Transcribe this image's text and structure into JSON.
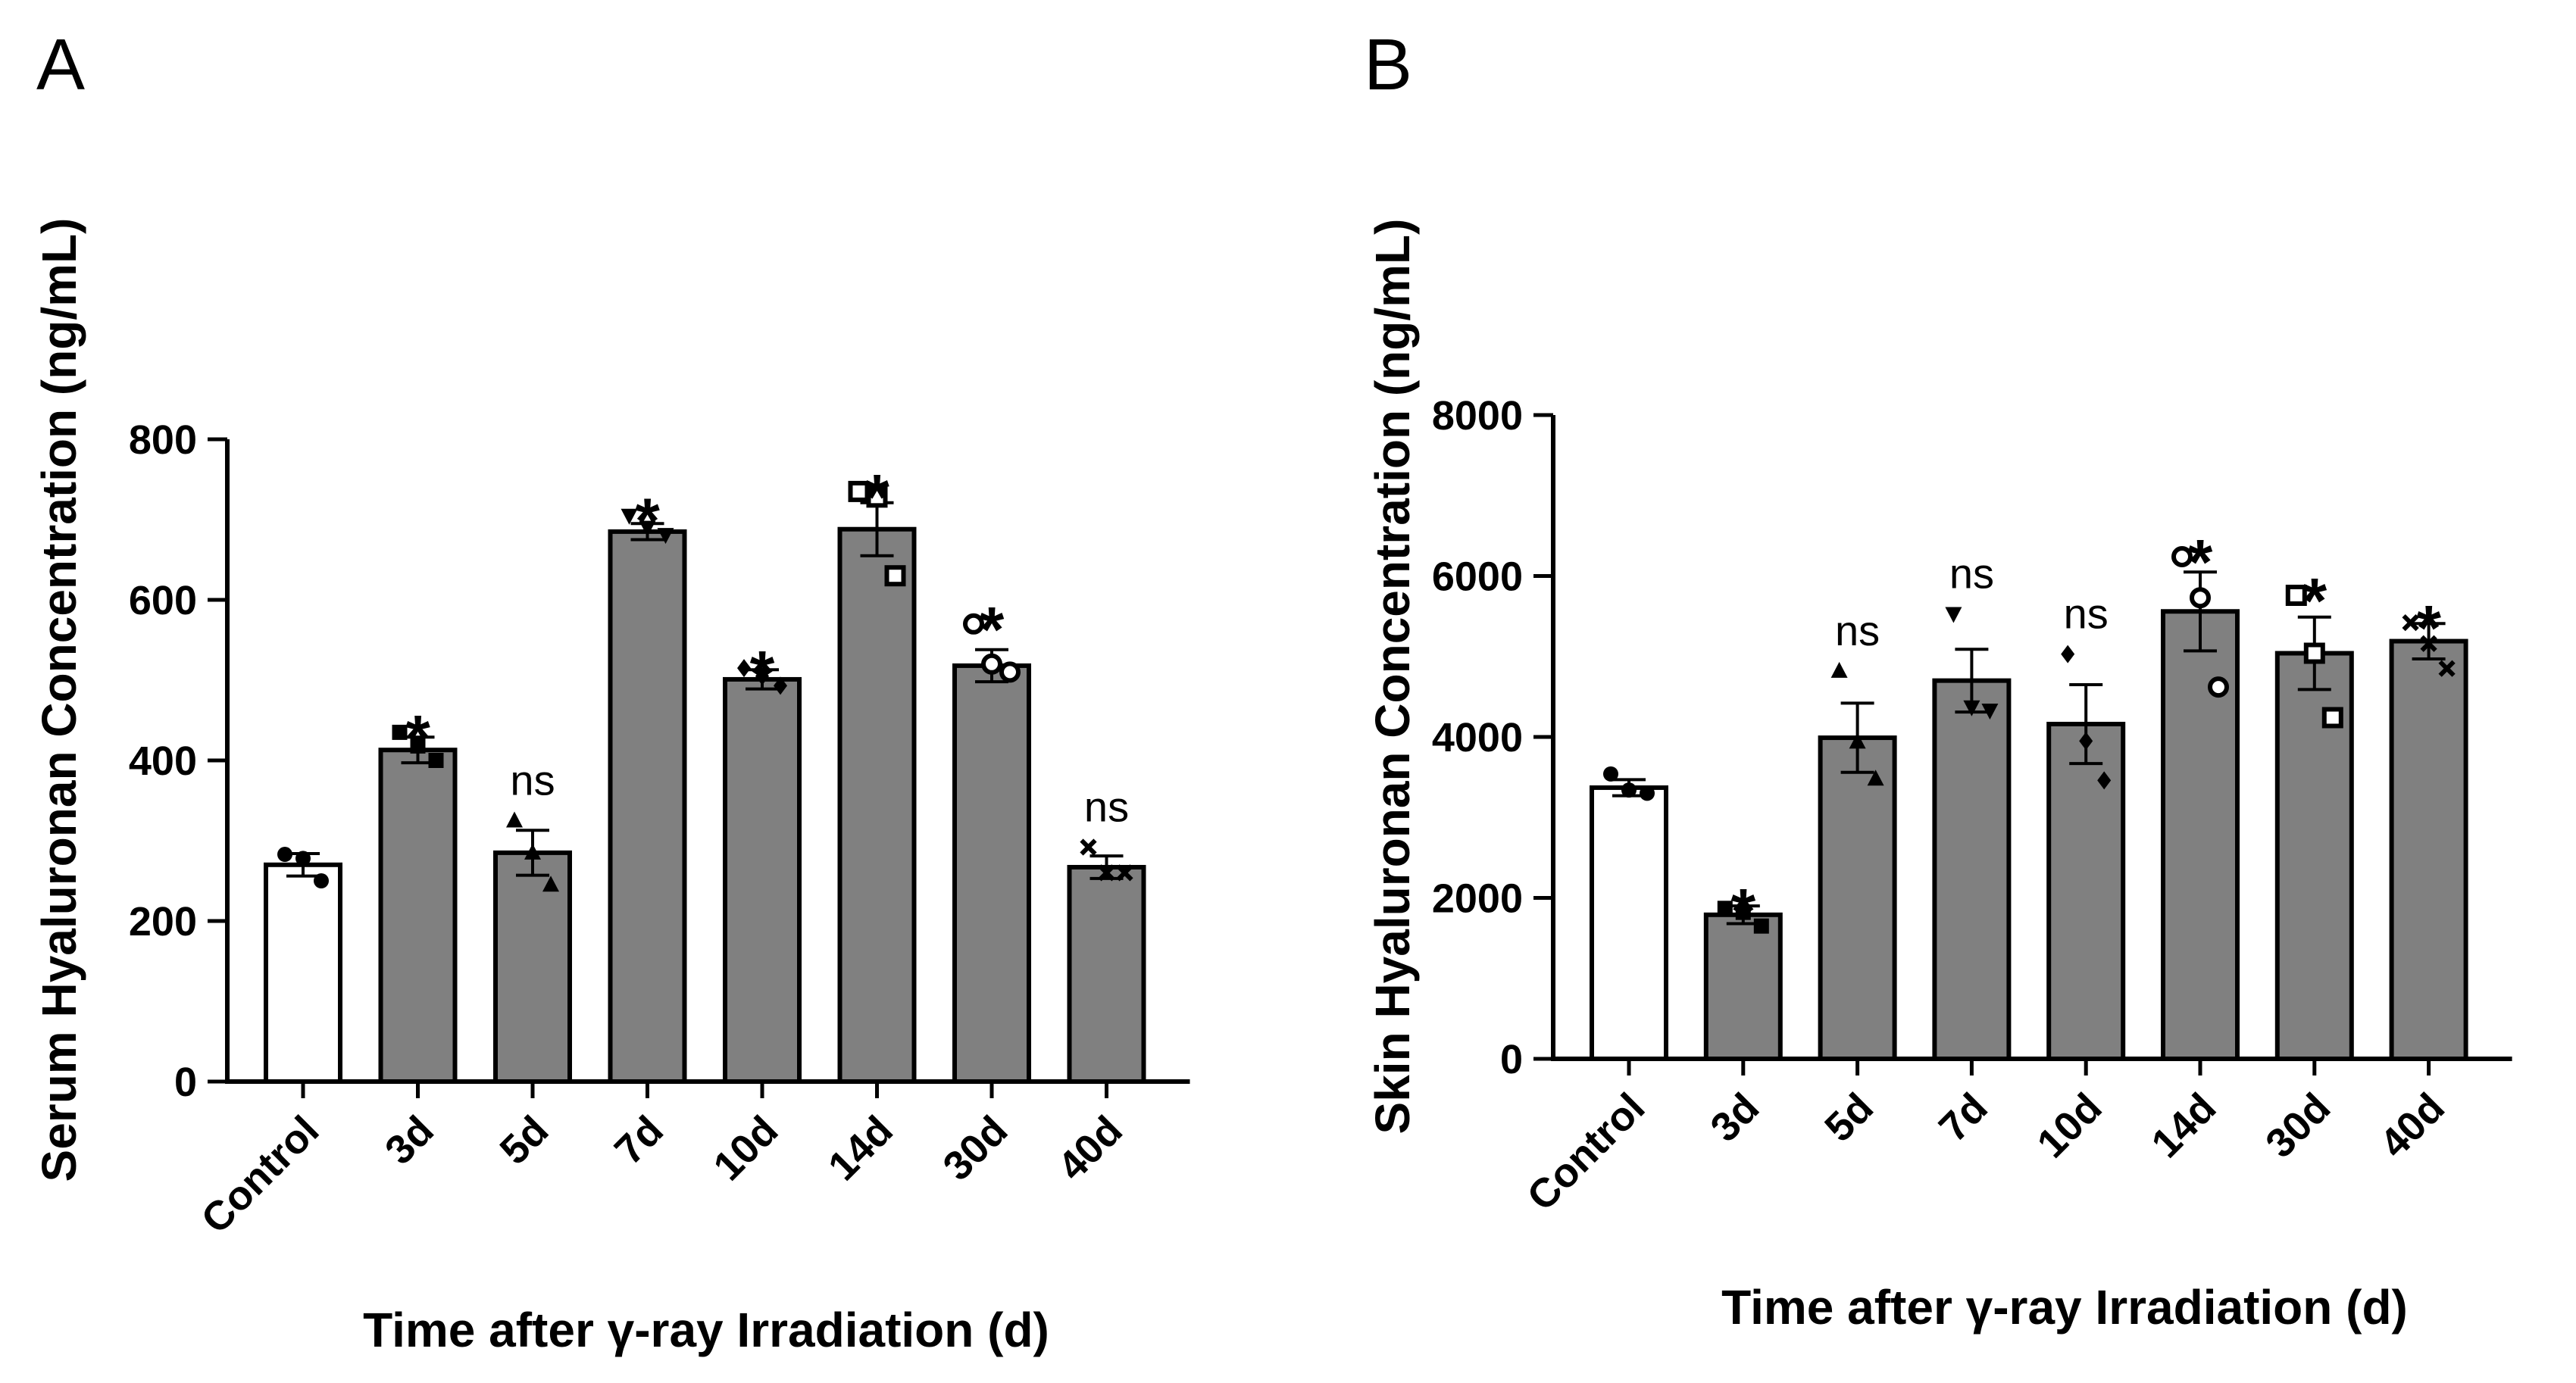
{
  "colors": {
    "control_fill": "#ffffff",
    "treated_fill": "#808080",
    "stroke": "#000000"
  },
  "chart_data": [
    {
      "panel": "A",
      "type": "bar",
      "ylabel": "Serum Hyaluronan Concentration (ng/mL)",
      "xlabel": "Time after γ-ray Irradiation (d)",
      "ylim": [
        0,
        800
      ],
      "yticks": [
        0,
        200,
        400,
        600,
        800
      ],
      "categories": [
        "Control",
        "3d",
        "5d",
        "7d",
        "10d",
        "14d",
        "30d",
        "40d"
      ],
      "values": [
        270,
        413,
        285,
        685,
        501,
        688,
        518,
        267
      ],
      "errors": [
        14,
        16,
        28,
        10,
        12,
        33,
        20,
        14
      ],
      "significance": [
        "",
        "*",
        "ns",
        "*",
        "*",
        "*",
        "*",
        "ns"
      ],
      "markers": [
        "circle",
        "square",
        "triangle",
        "triangle-down",
        "diamond",
        "square-open",
        "circle-open",
        "cross"
      ],
      "points": [
        [
          283,
          278,
          250
        ],
        [
          435,
          418,
          400
        ],
        [
          325,
          285,
          245
        ],
        [
          705,
          690,
          681
        ],
        [
          515,
          505,
          493
        ],
        [
          735,
          728,
          630
        ],
        [
          570,
          520,
          510
        ],
        [
          292,
          260,
          260
        ]
      ]
    },
    {
      "panel": "B",
      "type": "bar",
      "ylabel": "Skin Hyaluronan Concentration (ng/mL)",
      "xlabel": "Time after γ-ray Irradiation (d)",
      "ylim": [
        0,
        8000
      ],
      "yticks": [
        0,
        2000,
        4000,
        6000,
        8000
      ],
      "categories": [
        "Control",
        "3d",
        "5d",
        "7d",
        "10d",
        "14d",
        "30d",
        "40d"
      ],
      "values": [
        3370,
        1790,
        3990,
        4700,
        4160,
        5560,
        5040,
        5190
      ],
      "errors": [
        100,
        110,
        430,
        390,
        490,
        490,
        450,
        220
      ],
      "significance": [
        "",
        "*",
        "ns",
        "ns",
        "ns",
        "*",
        "*",
        "*"
      ],
      "markers": [
        "circle",
        "square",
        "triangle",
        "triangle-down",
        "diamond",
        "circle-open",
        "square-open",
        "cross"
      ],
      "points": [
        [
          3540,
          3340,
          3300
        ],
        [
          1870,
          1820,
          1650
        ],
        [
          4820,
          3940,
          3480
        ],
        [
          5530,
          4370,
          4330
        ],
        [
          5030,
          3950,
          3460
        ],
        [
          6240,
          5730,
          4620
        ],
        [
          5760,
          5040,
          4240
        ],
        [
          5420,
          5160,
          4850
        ]
      ]
    }
  ]
}
